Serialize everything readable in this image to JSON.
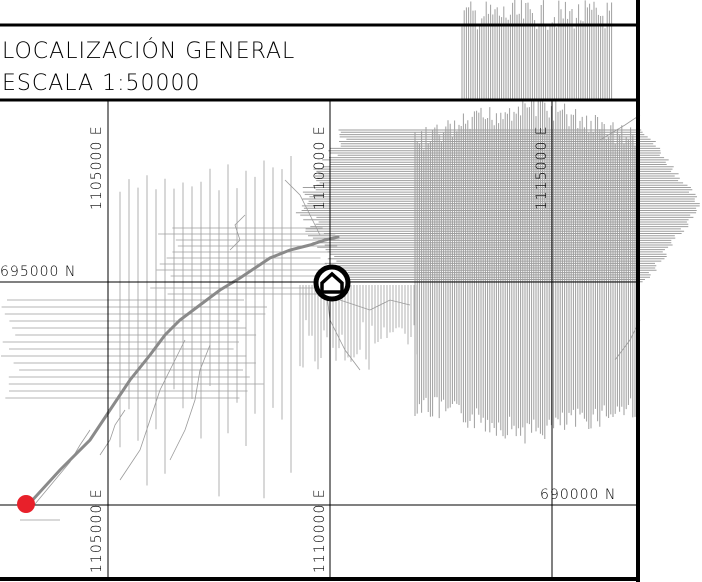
{
  "title": {
    "line1": "LOCALIZACIÓN GENERAL",
    "line2": "ESCALA 1:50000"
  },
  "grid_labels": {
    "easting_top_1": "1105000 E",
    "easting_top_2": "1110000 E",
    "easting_top_3": "1115000 E",
    "easting_bottom_1": "1105000 E",
    "easting_bottom_2": "1110000 E",
    "northing_upper": "695000 N",
    "northing_lower": "690000 N"
  },
  "markers": [
    {
      "name": "project-site",
      "symbol": "house-icon",
      "color": "#000000"
    },
    {
      "name": "reference-point",
      "symbol": "point-marker",
      "color": "#e8202a"
    }
  ],
  "colors": {
    "frame": "#000000",
    "hatch": "#9e9e9e",
    "road": "#8a8a8a",
    "streams": "#9a9a9a",
    "marker_red": "#e8202a"
  }
}
